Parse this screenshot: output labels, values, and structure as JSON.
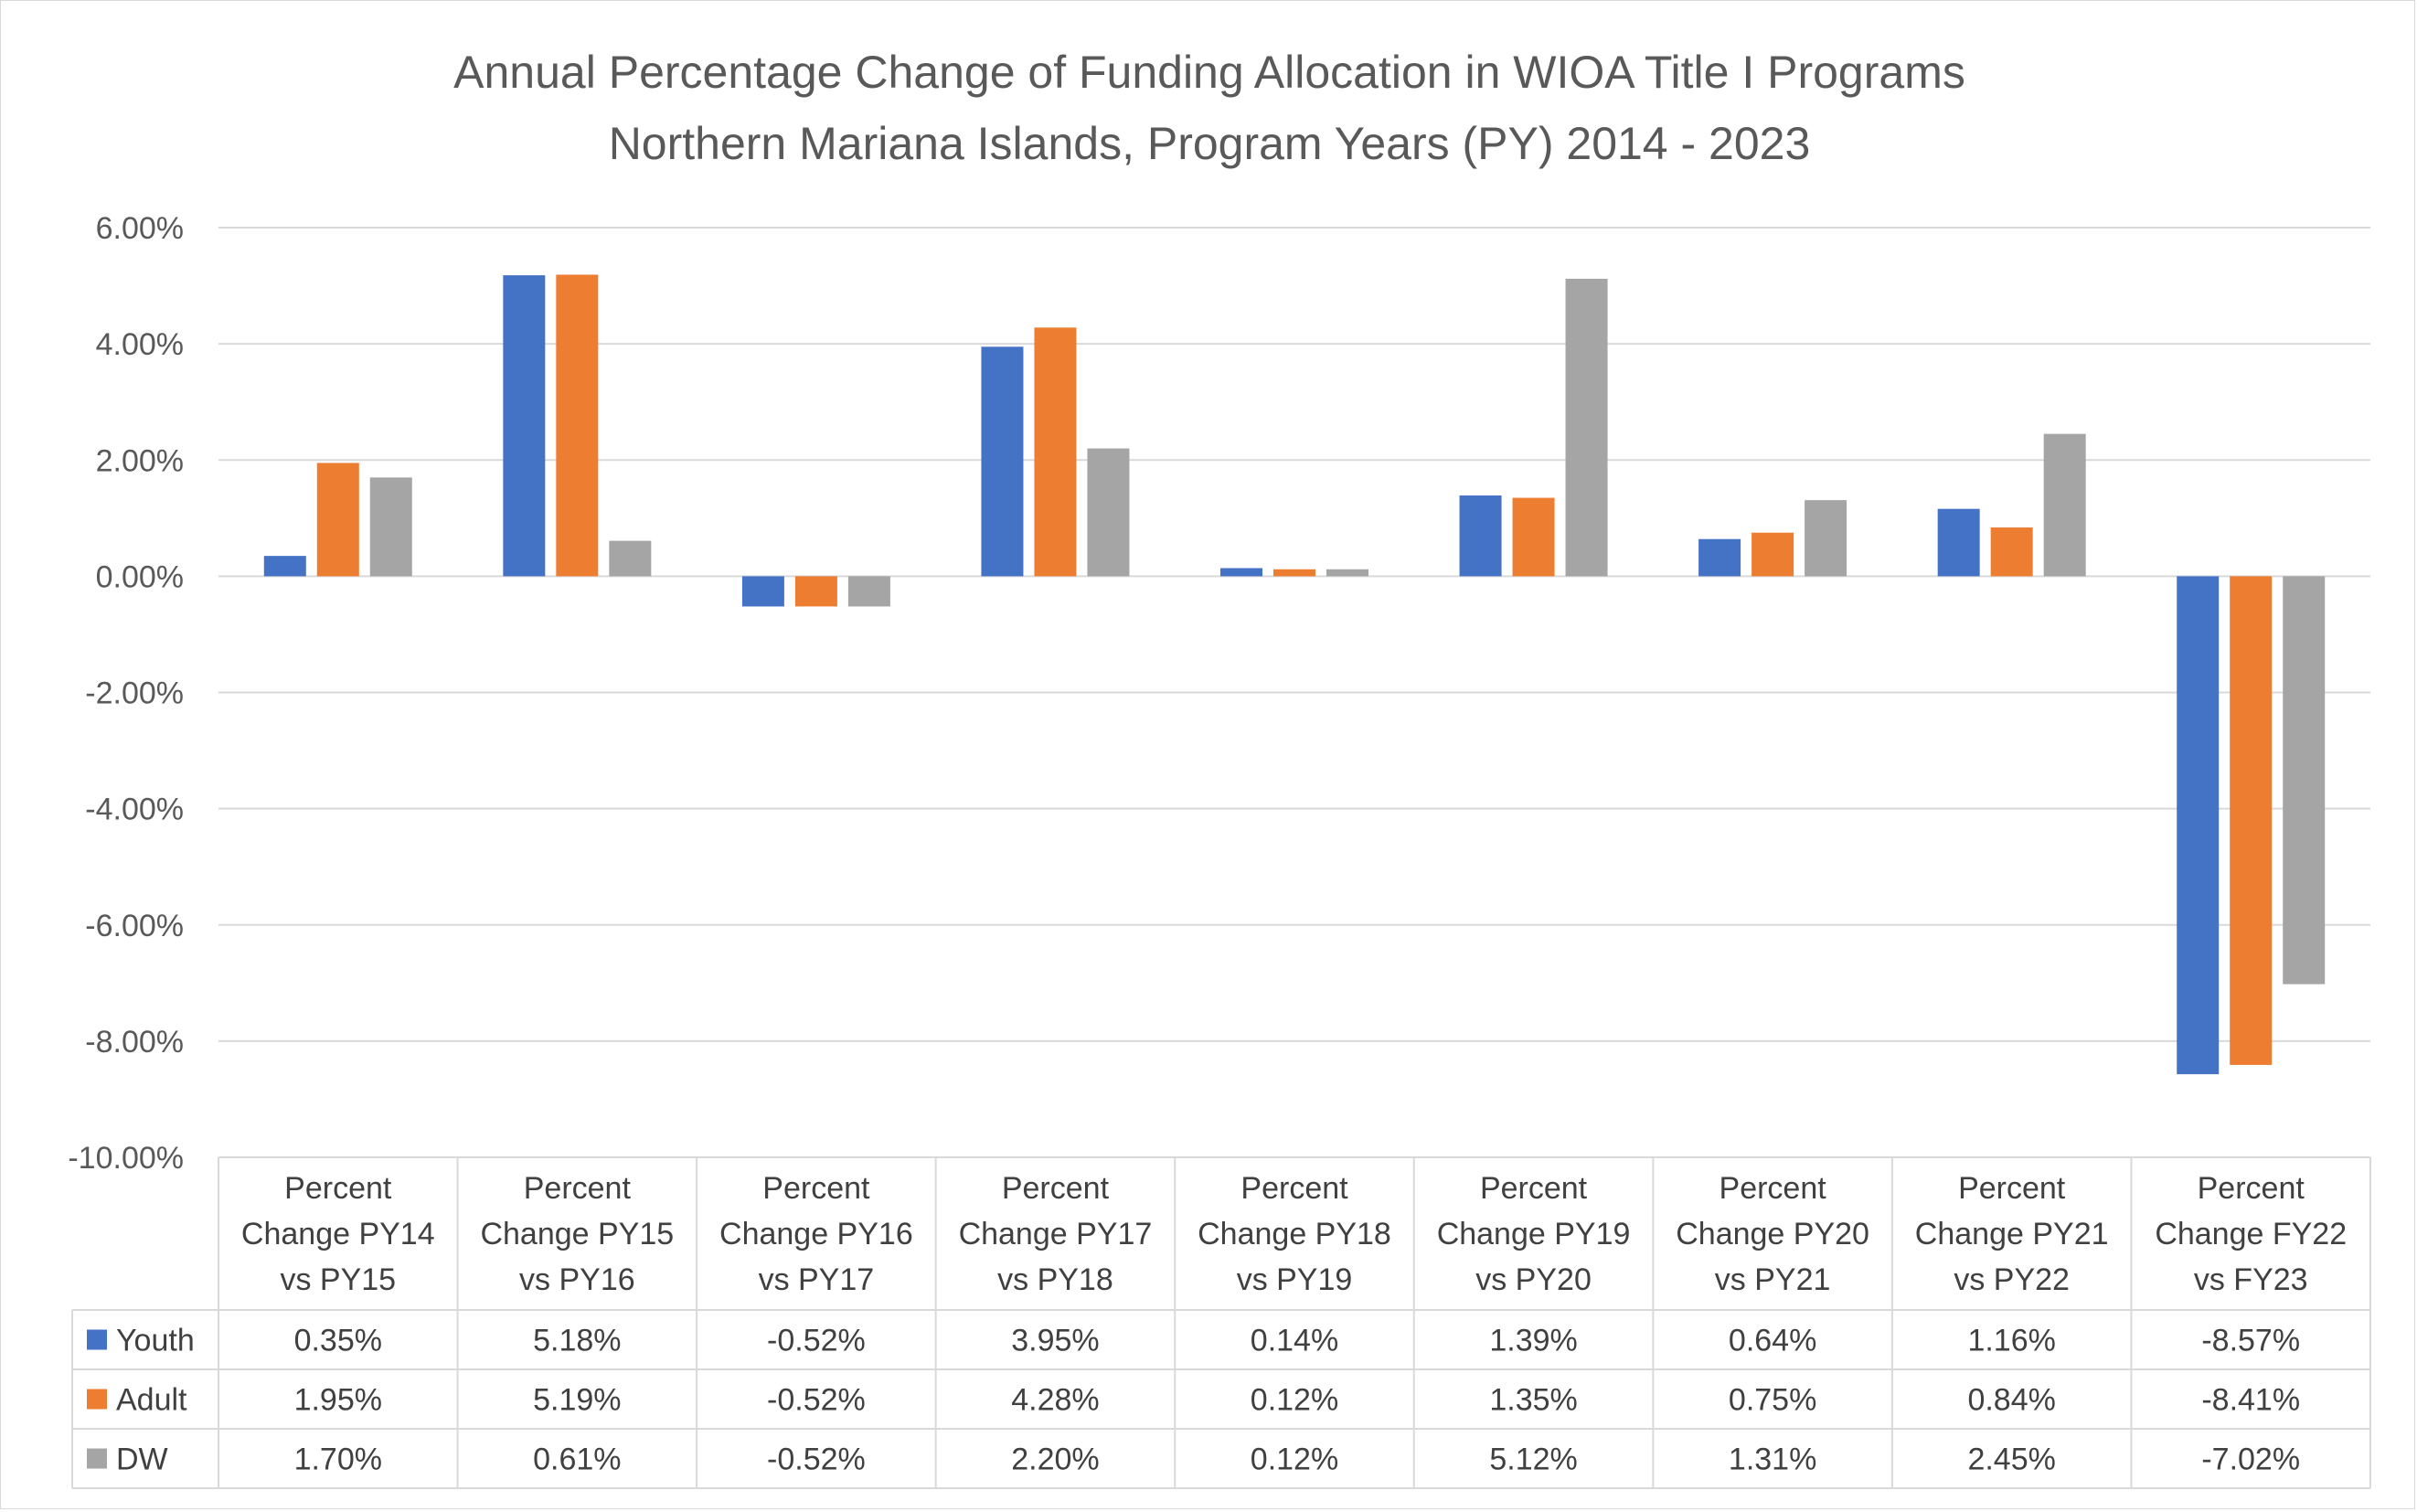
{
  "chart_data": {
    "type": "bar",
    "title": "Annual Percentage Change of Funding Allocation in WIOA Title I Programs",
    "subtitle": "Northern Mariana Islands, Program Years (PY) 2014 - 2023",
    "categories": [
      [
        "Percent",
        "Change PY14",
        "vs PY15"
      ],
      [
        "Percent",
        "Change PY15",
        "vs PY16"
      ],
      [
        "Percent",
        "Change PY16",
        "vs PY17"
      ],
      [
        "Percent",
        "Change PY17",
        "vs PY18"
      ],
      [
        "Percent",
        "Change PY18",
        "vs PY19"
      ],
      [
        "Percent",
        "Change PY19",
        "vs PY20"
      ],
      [
        "Percent",
        "Change PY20",
        "vs PY21"
      ],
      [
        "Percent",
        "Change PY21",
        "vs PY22"
      ],
      [
        "Percent",
        "Change FY22",
        "vs FY23"
      ]
    ],
    "series": [
      {
        "name": "Youth",
        "color": "#4472C4",
        "values": [
          0.35,
          5.18,
          -0.52,
          3.95,
          0.14,
          1.39,
          0.64,
          1.16,
          -8.57
        ],
        "labels": [
          "0.35%",
          "5.18%",
          "-0.52%",
          "3.95%",
          "0.14%",
          "1.39%",
          "0.64%",
          "1.16%",
          "-8.57%"
        ]
      },
      {
        "name": "Adult",
        "color": "#ED7D31",
        "values": [
          1.95,
          5.19,
          -0.52,
          4.28,
          0.12,
          1.35,
          0.75,
          0.84,
          -8.41
        ],
        "labels": [
          "1.95%",
          "5.19%",
          "-0.52%",
          "4.28%",
          "0.12%",
          "1.35%",
          "0.75%",
          "0.84%",
          "-8.41%"
        ]
      },
      {
        "name": "DW",
        "color": "#A5A5A5",
        "values": [
          1.7,
          0.61,
          -0.52,
          2.2,
          0.12,
          5.12,
          1.31,
          2.45,
          -7.02
        ],
        "labels": [
          "1.70%",
          "0.61%",
          "-0.52%",
          "2.20%",
          "0.12%",
          "5.12%",
          "1.31%",
          "2.45%",
          "-7.02%"
        ]
      }
    ],
    "yticks": [
      6,
      4,
      2,
      0,
      -2,
      -4,
      -6,
      -8,
      -10
    ],
    "ytick_labels": [
      "6.00%",
      "4.00%",
      "2.00%",
      "0.00%",
      "-2.00%",
      "-4.00%",
      "-6.00%",
      "-8.00%",
      "-10.00%"
    ],
    "ylim": [
      -10,
      6
    ],
    "grid": true,
    "legend": "data-table"
  }
}
